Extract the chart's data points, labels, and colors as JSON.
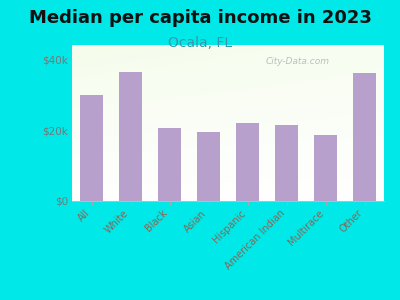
{
  "title": "Median per capita income in 2023",
  "subtitle": "Ocala, FL",
  "categories": [
    "All",
    "White",
    "Black",
    "Asian",
    "Hispanic",
    "American Indian",
    "Multirace",
    "Other"
  ],
  "values": [
    30000,
    36500,
    20500,
    19500,
    22000,
    21500,
    18500,
    36000
  ],
  "bar_color": "#b8a0cc",
  "background_color": "#00e8e8",
  "title_fontsize": 13,
  "subtitle_fontsize": 10,
  "subtitle_color": "#3399aa",
  "title_color": "#111111",
  "xtick_label_color": "#886655",
  "ytick_label_color": "#777777",
  "ytick_labels": [
    "$0",
    "$20k",
    "$40k"
  ],
  "ytick_values": [
    0,
    20000,
    40000
  ],
  "ylim": [
    0,
    44000
  ],
  "watermark": "City-Data.com"
}
